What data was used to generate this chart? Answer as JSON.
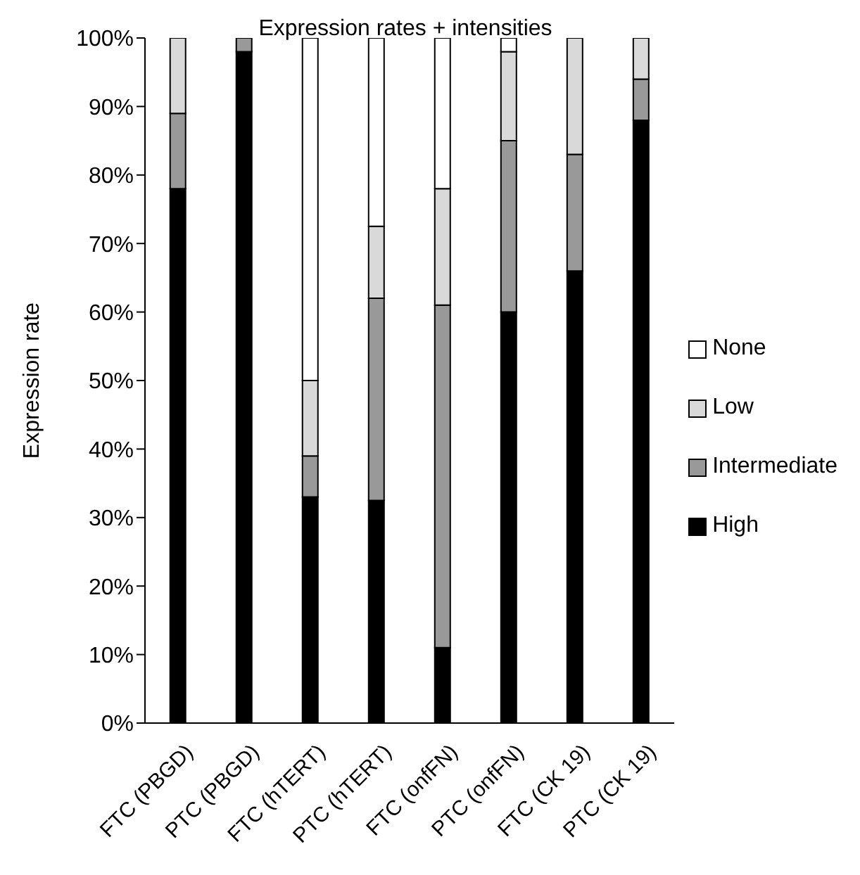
{
  "chart_data": {
    "type": "bar",
    "stacked": true,
    "title": "Expression rates + intensities",
    "ylabel": "Expression rate",
    "categories": [
      "FTC (PBGD)",
      "PTC (PBGD)",
      "FTC (hTERT)",
      "PTC (hTERT)",
      "FTC (onfFN)",
      "PTC (onfFN)",
      "FTC (CK 19)",
      "PTC (CK 19)"
    ],
    "series": [
      {
        "name": "High",
        "color": "#000000",
        "values": [
          78,
          98,
          33,
          32.5,
          11,
          60,
          66,
          88
        ]
      },
      {
        "name": "Intermediate",
        "color": "#999999",
        "values": [
          11,
          2,
          6,
          29.5,
          50,
          25,
          17,
          6
        ]
      },
      {
        "name": "Low",
        "color": "#d9d9d9",
        "values": [
          11,
          0,
          11,
          10.5,
          17,
          13,
          17,
          6
        ]
      },
      {
        "name": "None",
        "color": "#ffffff",
        "values": [
          0,
          0,
          50,
          27.5,
          22,
          2,
          0,
          0
        ]
      }
    ],
    "ylim": [
      0,
      100
    ],
    "yticks": [
      {
        "value": 0,
        "label": "0%"
      },
      {
        "value": 10,
        "label": "10%"
      },
      {
        "value": 20,
        "label": "20%"
      },
      {
        "value": 30,
        "label": "30%"
      },
      {
        "value": 40,
        "label": "40%"
      },
      {
        "value": 50,
        "label": "50%"
      },
      {
        "value": 60,
        "label": "60%"
      },
      {
        "value": 70,
        "label": "70%"
      },
      {
        "value": 80,
        "label": "80%"
      },
      {
        "value": 90,
        "label": "90%"
      },
      {
        "value": 100,
        "label": "100%"
      }
    ],
    "grid": false,
    "legend": "right"
  }
}
